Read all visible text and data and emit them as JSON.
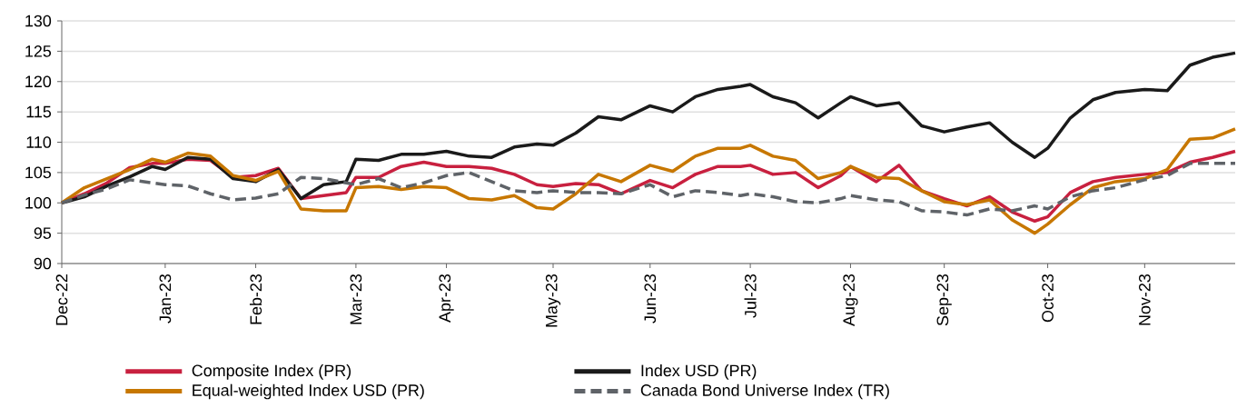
{
  "chart_data": {
    "type": "line",
    "x": [
      "2022-12-30",
      "2023-01-06",
      "2023-01-13",
      "2023-01-20",
      "2023-01-27",
      "2023-01-31",
      "2023-02-07",
      "2023-02-14",
      "2023-02-21",
      "2023-02-28",
      "2023-03-07",
      "2023-03-14",
      "2023-03-21",
      "2023-03-28",
      "2023-03-31",
      "2023-04-07",
      "2023-04-14",
      "2023-04-21",
      "2023-04-28",
      "2023-05-05",
      "2023-05-12",
      "2023-05-19",
      "2023-05-26",
      "2023-05-31",
      "2023-06-07",
      "2023-06-14",
      "2023-06-21",
      "2023-06-30",
      "2023-07-07",
      "2023-07-14",
      "2023-07-21",
      "2023-07-28",
      "2023-07-31",
      "2023-08-07",
      "2023-08-14",
      "2023-08-21",
      "2023-08-28",
      "2023-08-31",
      "2023-09-08",
      "2023-09-15",
      "2023-09-22",
      "2023-09-29",
      "2023-10-06",
      "2023-10-13",
      "2023-10-20",
      "2023-10-27",
      "2023-10-31",
      "2023-11-07",
      "2023-11-14",
      "2023-11-21",
      "2023-11-30",
      "2023-12-07",
      "2023-12-14",
      "2023-12-21",
      "2023-12-28"
    ],
    "series": [
      {
        "name": "Composite Index (PR)",
        "color": "#c8203f",
        "line_style": "solid",
        "values": [
          100,
          101.5,
          103.3,
          105.8,
          106.5,
          106.5,
          107.2,
          107,
          104.2,
          104.5,
          105.7,
          100.7,
          101.2,
          101.7,
          104.2,
          104.2,
          106,
          106.7,
          106,
          106,
          105.7,
          104.7,
          103,
          102.7,
          103.2,
          103,
          101.5,
          103.7,
          102.5,
          104.7,
          106,
          106,
          106.2,
          104.7,
          105,
          102.5,
          104.5,
          106,
          103.5,
          106.2,
          102,
          100.7,
          99.5,
          101,
          98.5,
          97,
          97.7,
          101.7,
          103.5,
          104.2,
          104.7,
          105,
          106.7,
          107.5,
          108.5
        ]
      },
      {
        "name": "Index USD (PR)",
        "color": "#1a1a1a",
        "line_style": "solid",
        "values": [
          100,
          101,
          102.8,
          104.3,
          106,
          105.5,
          107.5,
          107.2,
          104,
          103.5,
          105.5,
          100.7,
          103,
          103.5,
          107.2,
          107,
          108,
          108,
          108.5,
          107.7,
          107.5,
          109.2,
          109.7,
          109.5,
          111.5,
          114.2,
          113.7,
          116,
          115,
          117.5,
          118.7,
          119.2,
          119.5,
          117.5,
          116.5,
          114,
          116.5,
          117.5,
          116,
          116.5,
          112.7,
          111.7,
          112.5,
          113.2,
          110,
          107.5,
          109,
          114,
          117,
          118.2,
          118.7,
          118.5,
          122.7,
          124,
          124.7
        ]
      },
      {
        "name": "Equal-weighted Index USD (PR)",
        "color": "#c77700",
        "line_style": "solid",
        "values": [
          100,
          102.5,
          104,
          105.5,
          107.2,
          106.7,
          108.2,
          107.7,
          104.5,
          103.7,
          105.2,
          99,
          98.7,
          98.7,
          102.5,
          102.7,
          102.2,
          102.7,
          102.5,
          100.7,
          100.5,
          101.2,
          99.2,
          99,
          101.5,
          104.7,
          103.5,
          106.2,
          105.2,
          107.7,
          109,
          109,
          109.5,
          107.7,
          107,
          104,
          105,
          106,
          104.2,
          104,
          102,
          100.2,
          99.7,
          100.5,
          97.2,
          95,
          96.5,
          99.7,
          102.5,
          103.5,
          104,
          105.5,
          110.5,
          110.7,
          112.2
        ]
      },
      {
        "name": "Canada Bond Universe Index (TR)",
        "color": "#5f6368",
        "line_style": "dashed",
        "values": [
          100,
          101.3,
          102.3,
          103.8,
          103.3,
          103,
          102.8,
          101.5,
          100.5,
          100.8,
          101.5,
          104.2,
          104,
          103.3,
          103,
          104,
          102.5,
          103.3,
          104.5,
          105,
          103.5,
          102,
          101.7,
          102,
          101.7,
          101.7,
          101.5,
          103,
          101,
          102,
          101.7,
          101.2,
          101.5,
          101,
          100.2,
          100,
          100.7,
          101.2,
          100.5,
          100.2,
          98.7,
          98.5,
          98,
          99,
          98.7,
          99.5,
          99,
          101,
          102,
          102.5,
          103.8,
          104.5,
          106.5,
          106.5,
          106.5
        ]
      }
    ],
    "xlim": [
      "2022-12-30",
      "2023-12-28"
    ],
    "xticks": [
      {
        "value": "2022-12-30",
        "label": "Dec-22"
      },
      {
        "value": "2023-01-31",
        "label": "Jan-23"
      },
      {
        "value": "2023-02-28",
        "label": "Feb-23"
      },
      {
        "value": "2023-03-31",
        "label": "Mar-23"
      },
      {
        "value": "2023-04-28",
        "label": "Apr-23"
      },
      {
        "value": "2023-05-31",
        "label": "May-23"
      },
      {
        "value": "2023-06-30",
        "label": "Jun-23"
      },
      {
        "value": "2023-07-31",
        "label": "Jul-23"
      },
      {
        "value": "2023-08-31",
        "label": "Aug-23"
      },
      {
        "value": "2023-09-29",
        "label": "Sep-23"
      },
      {
        "value": "2023-10-31",
        "label": "Oct-23"
      },
      {
        "value": "2023-11-30",
        "label": "Nov-23"
      }
    ],
    "ylim": [
      90,
      130
    ],
    "yticks": [
      90,
      95,
      100,
      105,
      110,
      115,
      120,
      125,
      130
    ],
    "grid": "y",
    "legend": "bottom",
    "marker": "none"
  }
}
